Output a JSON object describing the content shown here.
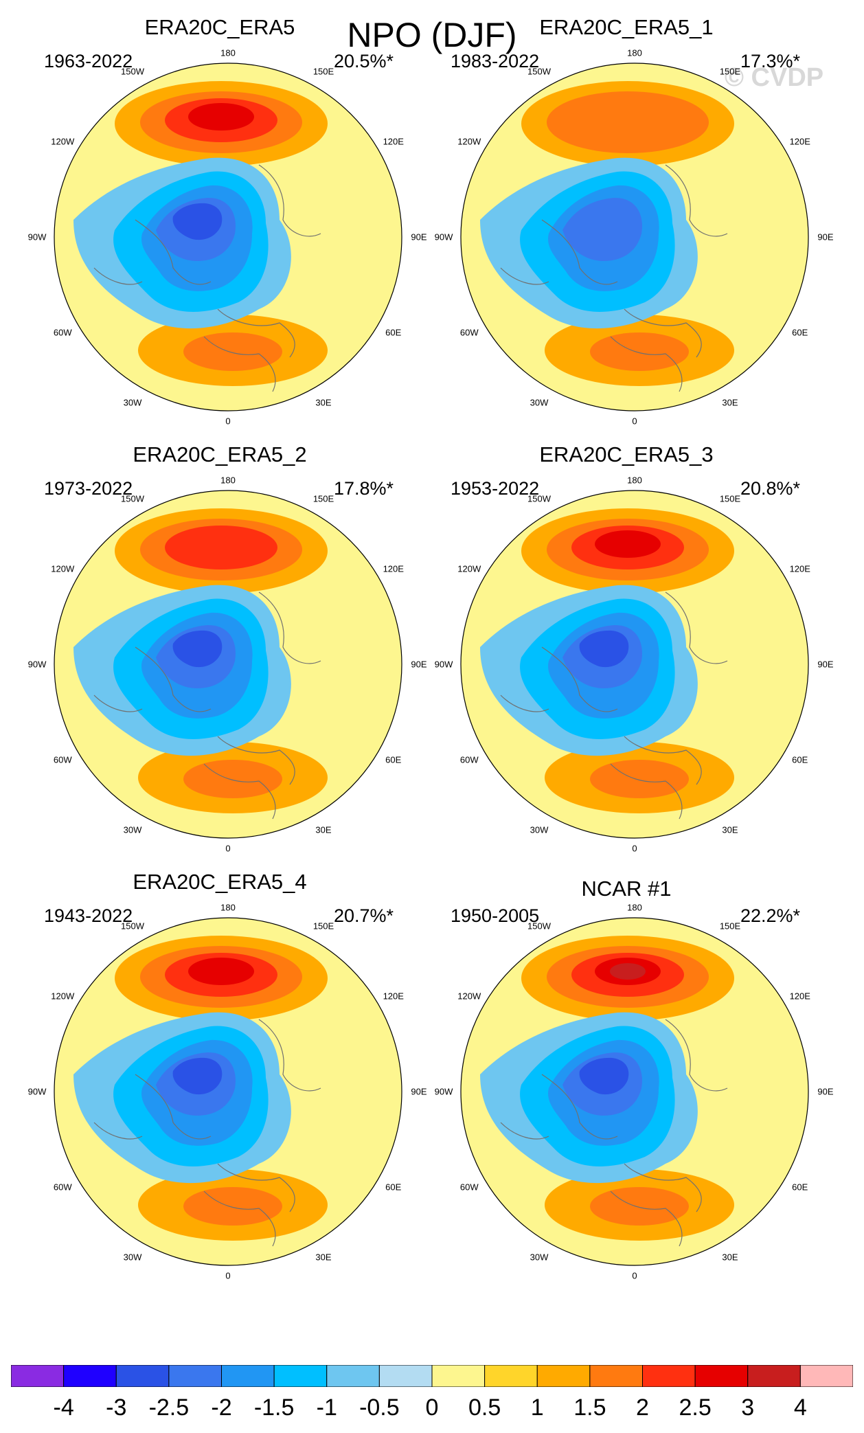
{
  "title": "NPO (DJF)",
  "watermark": "© CVDP",
  "longitude_labels": {
    "lon_180": "180",
    "lon_150w": "150W",
    "lon_150e": "150E",
    "lon_120w": "120W",
    "lon_120e": "120E",
    "lon_90w": "90W",
    "lon_90e": "90E",
    "lon_60w": "60W",
    "lon_60e": "60E",
    "lon_30w": "30W",
    "lon_30e": "30E",
    "lon_0": "0"
  },
  "panels": [
    {
      "title": "ERA20C_ERA5",
      "period": "1963-2022",
      "variance": "20.5%*",
      "pacific_high": 2.5,
      "arctic_low": -3.0
    },
    {
      "title": "ERA20C_ERA5_1",
      "period": "1983-2022",
      "variance": "17.3%*",
      "pacific_high": 1.5,
      "arctic_low": -2.5
    },
    {
      "title": "ERA20C_ERA5_2",
      "period": "1973-2022",
      "variance": "17.8%*",
      "pacific_high": 2.0,
      "arctic_low": -3.0
    },
    {
      "title": "ERA20C_ERA5_3",
      "period": "1953-2022",
      "variance": "20.8%*",
      "pacific_high": 2.5,
      "arctic_low": -3.0
    },
    {
      "title": "ERA20C_ERA5_4",
      "period": "1943-2022",
      "variance": "20.7%*",
      "pacific_high": 2.5,
      "arctic_low": -3.0
    },
    {
      "title": "NCAR #1",
      "period": "1950-2005",
      "variance": "22.2%*",
      "pacific_high": 3.0,
      "arctic_low": -3.0
    }
  ],
  "colorbar": {
    "labels": [
      "-4",
      "-3",
      "-2.5",
      "-2",
      "-1.5",
      "-1",
      "-0.5",
      "0",
      "0.5",
      "1",
      "1.5",
      "2",
      "2.5",
      "3",
      "4"
    ],
    "colors": [
      "#8a2be2",
      "#1f00ff",
      "#2a52e6",
      "#3a77ee",
      "#2196f3",
      "#00bfff",
      "#6ec6f0",
      "#b3dcf2",
      "#fdf68f",
      "#ffd52a",
      "#ffaa00",
      "#ff7a10",
      "#ff3010",
      "#e60000",
      "#c81e1e",
      "#ffb8b8"
    ]
  },
  "chart_data": {
    "type": "map",
    "title": "NPO (DJF)",
    "projection": "north polar stereographic",
    "colorbar_levels": [
      -4,
      -3,
      -2.5,
      -2,
      -1.5,
      -1,
      -0.5,
      0,
      0.5,
      1,
      1.5,
      2,
      2.5,
      3,
      4
    ],
    "panels": [
      {
        "name": "ERA20C_ERA5",
        "period": "1963-2022",
        "variance_pct": 20.5
      },
      {
        "name": "ERA20C_ERA5_1",
        "period": "1983-2022",
        "variance_pct": 17.3
      },
      {
        "name": "ERA20C_ERA5_2",
        "period": "1973-2022",
        "variance_pct": 17.8
      },
      {
        "name": "ERA20C_ERA5_3",
        "period": "1953-2022",
        "variance_pct": 20.8
      },
      {
        "name": "ERA20C_ERA5_4",
        "period": "1943-2022",
        "variance_pct": 20.7
      },
      {
        "name": "NCAR #1",
        "period": "1950-2005",
        "variance_pct": 22.2
      }
    ]
  }
}
